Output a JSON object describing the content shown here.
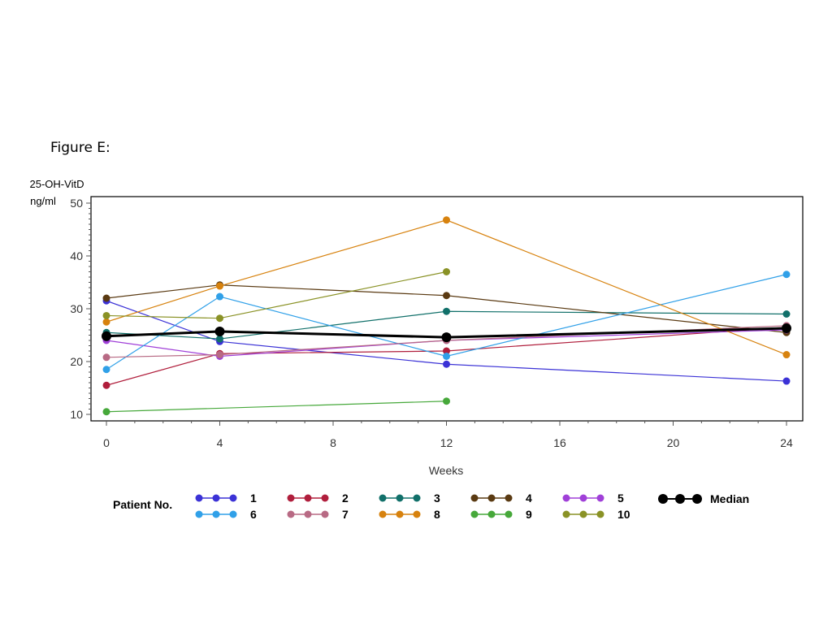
{
  "figure": {
    "title": "Figure E:"
  },
  "chart_data": {
    "type": "line",
    "ylabel_line1": "25-OH-VitD",
    "ylabel_line2": "ng/ml",
    "xlabel": "Weeks",
    "xlim": [
      0,
      24
    ],
    "ylim": [
      10,
      50
    ],
    "x_ticks": [
      0,
      4,
      8,
      12,
      16,
      20,
      24
    ],
    "y_ticks": [
      10,
      20,
      30,
      40,
      50
    ],
    "x": [
      0,
      4,
      12,
      24
    ],
    "grid": false,
    "legend_title": "Patient No.",
    "legend_position": "bottom",
    "series": [
      {
        "name": "1",
        "color": "#3b32d6",
        "values": [
          31.5,
          23.8,
          19.5,
          16.3
        ]
      },
      {
        "name": "2",
        "color": "#b01e3c",
        "values": [
          15.5,
          21.5,
          22.0,
          26.5
        ]
      },
      {
        "name": "3",
        "color": "#11706a",
        "values": [
          25.5,
          24.3,
          29.5,
          29.0
        ]
      },
      {
        "name": "4",
        "color": "#5a3a12",
        "values": [
          32.0,
          34.5,
          32.5,
          25.5
        ]
      },
      {
        "name": "5",
        "color": "#a040d8",
        "values": [
          24.0,
          21.0,
          24.0,
          26.0
        ]
      },
      {
        "name": "6",
        "color": "#30a0e8",
        "values": [
          18.5,
          32.3,
          21.0,
          36.5
        ]
      },
      {
        "name": "7",
        "color": "#b86a84",
        "values": [
          20.8,
          21.3,
          24.0,
          26.8
        ]
      },
      {
        "name": "8",
        "color": "#d7820e",
        "values": [
          27.5,
          34.3,
          46.8,
          21.3
        ]
      },
      {
        "name": "9",
        "color": "#46a83a",
        "values": [
          10.5,
          null,
          12.5,
          null
        ]
      },
      {
        "name": "10",
        "color": "#8a9226",
        "values": [
          28.7,
          28.2,
          37.0,
          null
        ]
      },
      {
        "name": "Median",
        "color": "#000000",
        "values": [
          24.8,
          25.7,
          24.6,
          26.3
        ],
        "bold": true
      }
    ]
  }
}
